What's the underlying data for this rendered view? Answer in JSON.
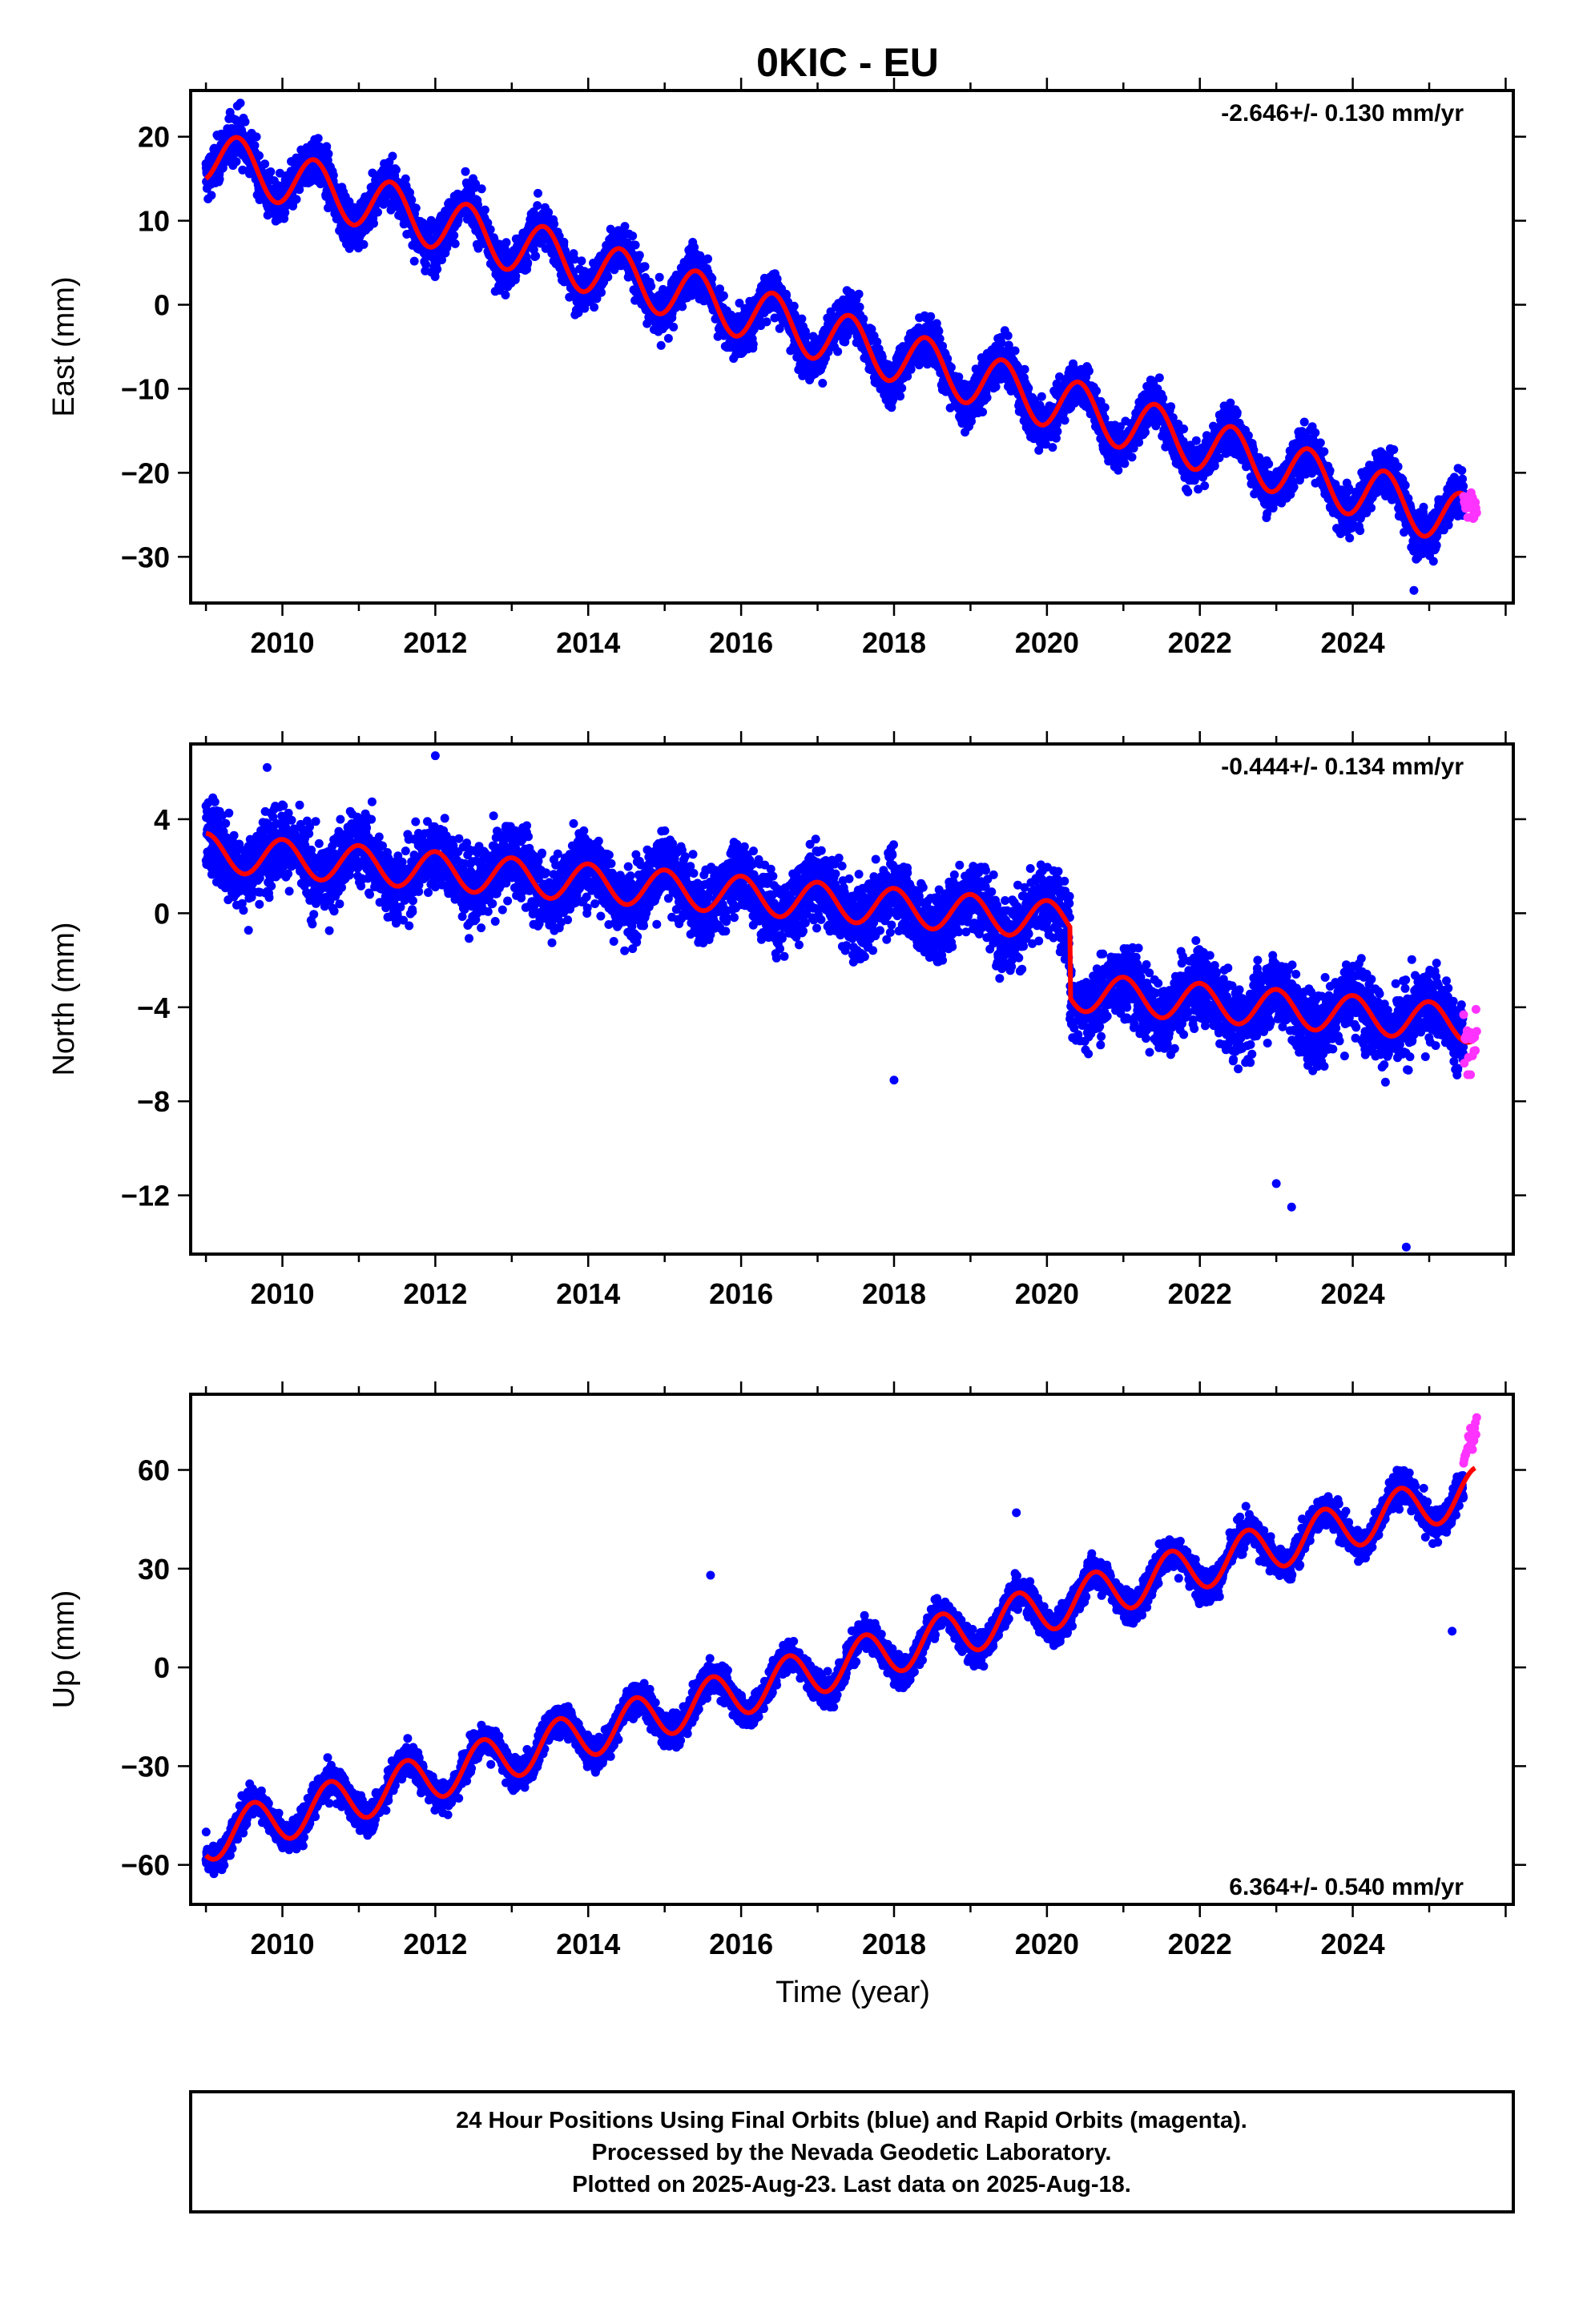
{
  "title": "0KIC - EU",
  "footer": {
    "line1": "24 Hour Positions Using Final Orbits (blue) and Rapid Orbits (magenta).",
    "line2": "Processed by the Nevada Geodetic Laboratory.",
    "line3": "Plotted on 2025-Aug-23. Last data on 2025-Aug-18."
  },
  "colors": {
    "final": "#0000ff",
    "rapid": "#ff33ff",
    "model": "#ff0000",
    "frame": "#000000"
  },
  "chart_data": [
    {
      "type": "scatter",
      "component": "east",
      "ylabel": "East (mm)",
      "xlabel": "",
      "rate": "-2.646+/- 0.130 mm/yr",
      "rate_position": "top-right",
      "xlim": [
        2008.8,
        2026.1
      ],
      "ylim": [
        -35.5,
        25.5
      ],
      "xticks": [
        2010,
        2012,
        2014,
        2016,
        2018,
        2020,
        2022,
        2024
      ],
      "xtick_labels": [
        "2010",
        "2012",
        "2014",
        "2016",
        "2018",
        "2020",
        "2022",
        "2024"
      ],
      "yticks": [
        20,
        10,
        0,
        -10,
        -20,
        -30
      ],
      "ytick_labels": [
        "20",
        "10",
        "0",
        "−10",
        "−20",
        "−30"
      ],
      "grid": false,
      "series": [
        {
          "role": "final orbits (blue)",
          "trend": {
            "x0": 2009.0,
            "y0": 17.8,
            "slope": -2.646
          },
          "annual": {
            "amp": 3.2,
            "peak": 0.42
          },
          "scatter": 2.3,
          "x_range": [
            2009.0,
            2025.45
          ],
          "outliers": [
            {
              "x": 2009.45,
              "y": 24.0
            },
            {
              "x": 2024.8,
              "y": -34.0
            }
          ]
        },
        {
          "role": "rapid orbits (magenta)",
          "x_range": [
            2025.45,
            2025.63
          ]
        },
        {
          "role": "model fit (red)",
          "x_range": [
            2009.0,
            2025.6
          ]
        }
      ]
    },
    {
      "type": "scatter",
      "component": "north",
      "ylabel": "North (mm)",
      "xlabel": "",
      "rate": "-0.444+/- 0.134 mm/yr",
      "rate_position": "top-right",
      "xlim": [
        2008.8,
        2026.1
      ],
      "ylim": [
        -14.5,
        7.2
      ],
      "xticks": [
        2010,
        2012,
        2014,
        2016,
        2018,
        2020,
        2022,
        2024
      ],
      "xtick_labels": [
        "2010",
        "2012",
        "2014",
        "2016",
        "2018",
        "2020",
        "2022",
        "2024"
      ],
      "yticks": [
        4,
        0,
        -4,
        -8,
        -12
      ],
      "ytick_labels": [
        "4",
        "0",
        "−4",
        "−8",
        "−12"
      ],
      "grid": false,
      "series": [
        {
          "role": "final orbits (blue)",
          "trend": {
            "x0": 2009.0,
            "y0": 2.6,
            "slope": -0.26
          },
          "annual": {
            "amp": 0.8,
            "peak": 0.0
          },
          "scatter": 1.3,
          "step": {
            "x": 2020.3,
            "dy": -3.0
          },
          "x_range": [
            2009.0,
            2025.45
          ],
          "outliers": [
            {
              "x": 2012.0,
              "y": 6.7
            },
            {
              "x": 2018.0,
              "y": -7.1
            },
            {
              "x": 2023.2,
              "y": -12.5
            },
            {
              "x": 2024.7,
              "y": -14.2
            },
            {
              "x": 2023.0,
              "y": -11.5
            },
            {
              "x": 2009.8,
              "y": 6.2
            }
          ]
        },
        {
          "role": "rapid orbits (magenta)",
          "x_range": [
            2025.45,
            2025.63
          ]
        },
        {
          "role": "model fit (red)",
          "x_range": [
            2009.0,
            2025.6
          ]
        }
      ]
    },
    {
      "type": "scatter",
      "component": "up",
      "ylabel": "Up (mm)",
      "xlabel": "Time (year)",
      "rate": "6.364+/- 0.540 mm/yr",
      "rate_position": "bottom-right",
      "xlim": [
        2008.8,
        2026.1
      ],
      "ylim": [
        -72,
        83
      ],
      "xticks": [
        2010,
        2012,
        2014,
        2016,
        2018,
        2020,
        2022,
        2024
      ],
      "xtick_labels": [
        "2010",
        "2012",
        "2014",
        "2016",
        "2018",
        "2020",
        "2022",
        "2024"
      ],
      "yticks": [
        60,
        30,
        0,
        -30,
        -60
      ],
      "ytick_labels": [
        "60",
        "30",
        "0",
        "−30",
        "−60"
      ],
      "grid": false,
      "series": [
        {
          "role": "final orbits (blue)",
          "trend": {
            "x0": 2009.0,
            "y0": -52.0,
            "slope": 6.364
          },
          "annual": {
            "amp": 7.0,
            "peak": 0.62
          },
          "scatter": 4.0,
          "x_range": [
            2009.0,
            2025.45
          ],
          "outliers": [
            {
              "x": 2025.3,
              "y": 11.0
            },
            {
              "x": 2015.6,
              "y": 28.0
            },
            {
              "x": 2019.6,
              "y": 47.0
            }
          ]
        },
        {
          "role": "rapid orbits (magenta)",
          "x_range": [
            2025.45,
            2025.63
          ],
          "max_y": 81
        },
        {
          "role": "model fit (red)",
          "x_range": [
            2009.0,
            2025.6
          ]
        }
      ]
    }
  ]
}
